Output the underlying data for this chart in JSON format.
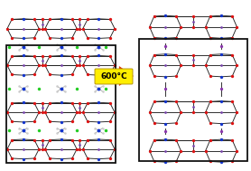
{
  "fig_width": 2.78,
  "fig_height": 1.89,
  "dpi": 100,
  "bg_color": "#ffffff",
  "arrow_label": "600°C",
  "arrow_color": "#cc2200",
  "arrow_label_bg": "#ffee00",
  "frame_color": "#111111",
  "si_color": "#7744aa",
  "o_color": "#dd1111",
  "n_color": "#1133cc",
  "green_color": "#22cc22",
  "white_atom_color": "#cccccc",
  "bond_color": "#222222",
  "inter_o_color": "#8833aa"
}
